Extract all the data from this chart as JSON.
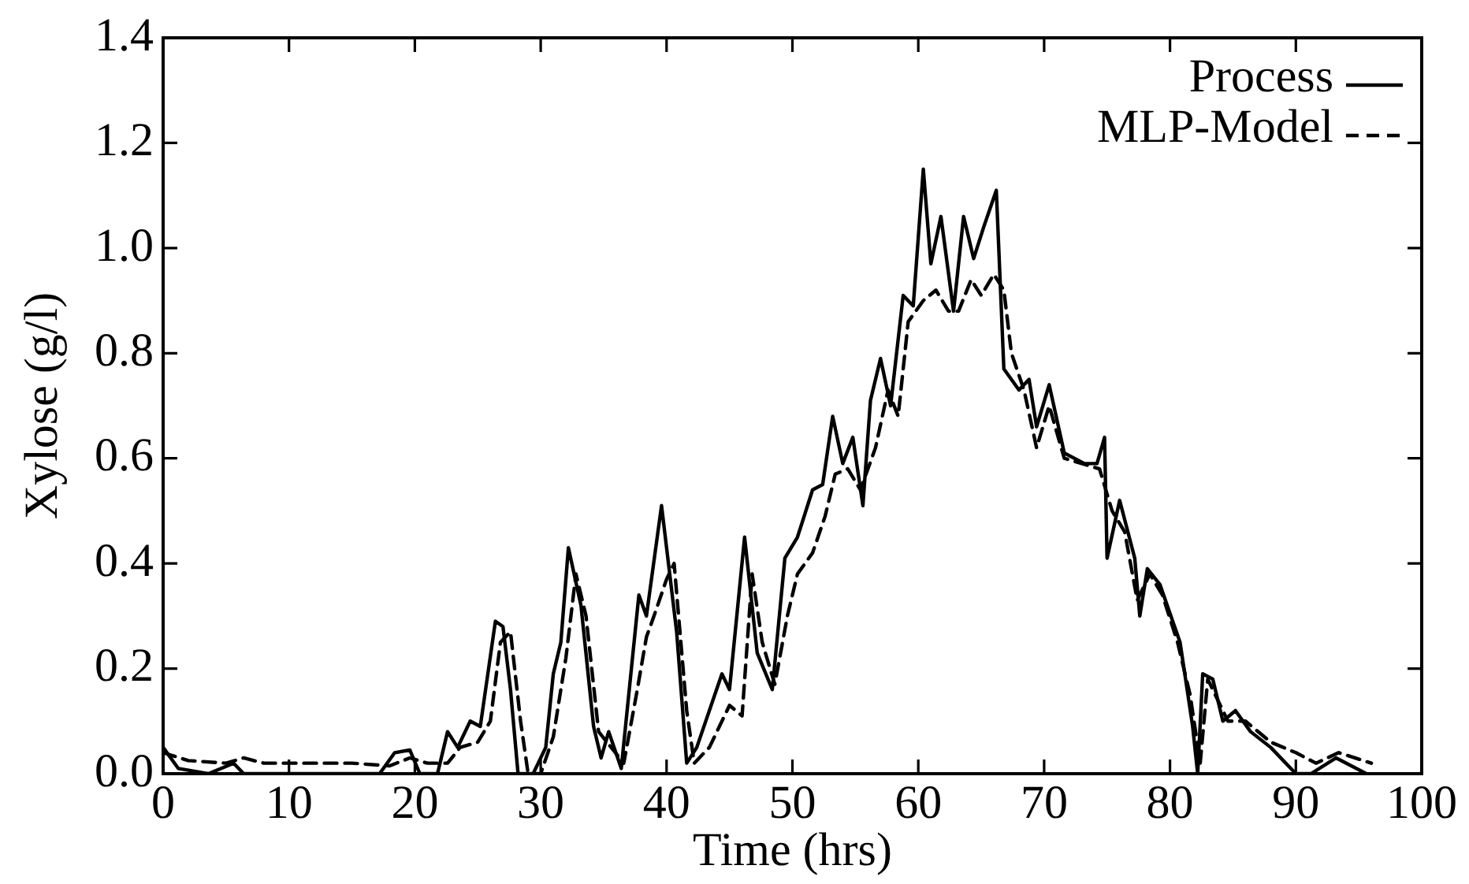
{
  "chart_data": {
    "type": "line",
    "xlabel": "Time (hrs)",
    "ylabel": "Xylose (g/l)",
    "xlim": [
      0,
      100
    ],
    "xticks": [
      0,
      10,
      20,
      30,
      40,
      50,
      60,
      70,
      80,
      90,
      100
    ],
    "ylim": [
      0,
      1.4
    ],
    "yticks": [
      {
        "value": 0,
        "label": "0.0"
      },
      {
        "value": 0.2,
        "label": "0.2"
      },
      {
        "value": 0.4,
        "label": "0.4"
      },
      {
        "value": 0.6,
        "label": "0.6"
      },
      {
        "value": 0.8,
        "label": "0.8"
      },
      {
        "value": 1,
        "label": "1.0"
      },
      {
        "value": 1.2,
        "label": "1.2"
      },
      {
        "value": 1.4,
        "label": "1.4"
      }
    ],
    "grid": false,
    "legend": "top right",
    "marker": "none",
    "series": [
      {
        "name": "Process",
        "color": "#000000",
        "line_style": "solid",
        "x": [
          0,
          1.2,
          3.6,
          5.6,
          6.4,
          17.2,
          18.4,
          19.6,
          20.4,
          21.8,
          22.6,
          23.4,
          24.4,
          25.2,
          26.4,
          27,
          27.6,
          28.2,
          29.4,
          30.4,
          31,
          31.6,
          32.2,
          33.2,
          34.2,
          34.8,
          35.4,
          36.4,
          37.8,
          38.4,
          39.6,
          40.8,
          41.6,
          42.4,
          44.4,
          45,
          46.2,
          47.2,
          48.4,
          49.4,
          50.4,
          51.6,
          52.4,
          53.2,
          54,
          54.8,
          55.6,
          56.2,
          57,
          57.8,
          58.8,
          59.6,
          60.4,
          61,
          61.8,
          62.8,
          63.6,
          64.4,
          65.2,
          66.2,
          66.8,
          68,
          68.8,
          69.4,
          70.4,
          71.6,
          73.2,
          74.2,
          74.8,
          75,
          76,
          77.2,
          77.6,
          78.2,
          79.2,
          80.8,
          81.8,
          82.2,
          82.6,
          83.4,
          84.2,
          85.2,
          86.4,
          88,
          90,
          91.2,
          93.2,
          95.6
        ],
        "values": [
          0.05,
          0.01,
          0,
          0.02,
          0,
          0,
          0.04,
          0.045,
          0,
          0,
          0.08,
          0.05,
          0.1,
          0.09,
          0.29,
          0.28,
          0.16,
          0,
          0,
          0.05,
          0.19,
          0.25,
          0.43,
          0.32,
          0.09,
          0.03,
          0.08,
          0.01,
          0.34,
          0.3,
          0.51,
          0.27,
          0.02,
          0.05,
          0.19,
          0.16,
          0.45,
          0.23,
          0.16,
          0.41,
          0.45,
          0.54,
          0.55,
          0.68,
          0.59,
          0.64,
          0.51,
          0.71,
          0.79,
          0.7,
          0.91,
          0.89,
          1.15,
          0.97,
          1.06,
          0.88,
          1.06,
          0.98,
          1.04,
          1.11,
          0.77,
          0.73,
          0.75,
          0.66,
          0.74,
          0.61,
          0.59,
          0.59,
          0.64,
          0.41,
          0.52,
          0.41,
          0.3,
          0.39,
          0.36,
          0.25,
          0.09,
          0,
          0.19,
          0.18,
          0.1,
          0.12,
          0.08,
          0.05,
          0,
          0,
          0.03,
          0
        ]
      },
      {
        "name": "MLP-Model",
        "color": "#000000",
        "line_style": "dashed",
        "x": [
          0,
          2,
          5,
          6.4,
          8,
          15,
          18,
          19.6,
          21,
          22.6,
          23.6,
          25,
          26,
          26.8,
          27.6,
          28.4,
          29,
          30,
          31,
          32,
          32.8,
          33.6,
          34.6,
          35.6,
          36.6,
          37.6,
          38.4,
          39,
          40,
          40.6,
          41.6,
          42.2,
          43.4,
          45,
          46,
          46.8,
          47.6,
          48.6,
          49.6,
          50.4,
          51.6,
          52.6,
          53.4,
          54.4,
          55.4,
          56.6,
          57.6,
          58.4,
          59.2,
          60.4,
          61.4,
          62.4,
          63.2,
          64.2,
          65,
          66,
          66.8,
          67.4,
          68.4,
          69.4,
          70.4,
          71.6,
          73,
          74.4,
          75.4,
          76.4,
          77.4,
          78.4,
          79.4,
          80.6,
          81.6,
          82.4,
          83,
          83.8,
          84.6,
          86,
          88,
          90,
          91.6,
          93.4,
          96
        ],
        "values": [
          0.04,
          0.025,
          0.02,
          0.03,
          0.02,
          0.02,
          0.015,
          0.03,
          0.02,
          0.02,
          0.05,
          0.06,
          0.1,
          0.25,
          0.27,
          0.1,
          0,
          0,
          0.07,
          0.22,
          0.38,
          0.3,
          0.08,
          0.05,
          0.02,
          0.15,
          0.26,
          0.3,
          0.37,
          0.4,
          0.12,
          0.02,
          0.05,
          0.13,
          0.11,
          0.38,
          0.25,
          0.17,
          0.3,
          0.38,
          0.42,
          0.49,
          0.57,
          0.58,
          0.54,
          0.62,
          0.73,
          0.68,
          0.86,
          0.9,
          0.92,
          0.88,
          0.88,
          0.94,
          0.91,
          0.95,
          0.92,
          0.8,
          0.73,
          0.62,
          0.7,
          0.6,
          0.59,
          0.58,
          0.5,
          0.46,
          0.33,
          0.38,
          0.34,
          0.25,
          0.15,
          0.02,
          0.18,
          0.14,
          0.1,
          0.1,
          0.06,
          0.04,
          0.02,
          0.04,
          0.02
        ]
      }
    ]
  }
}
